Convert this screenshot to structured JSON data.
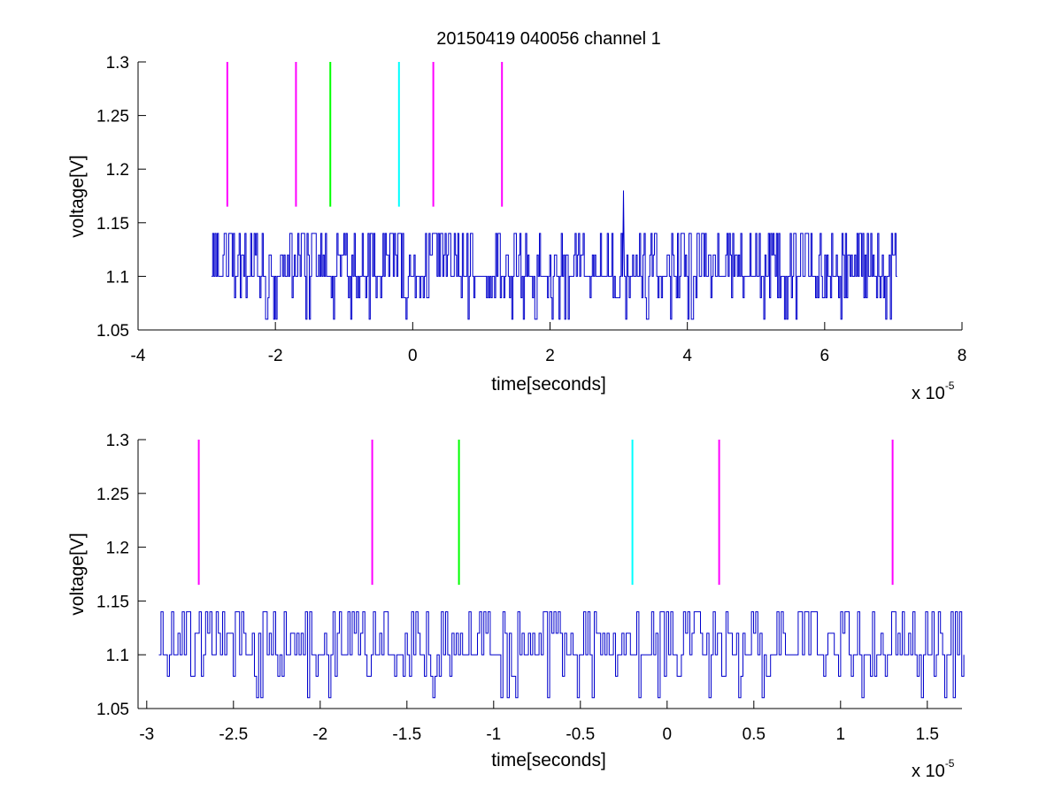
{
  "figure": {
    "background": "#ffffff"
  },
  "chart_data": [
    {
      "type": "line",
      "title": "20150419 040056 channel 1",
      "xlabel": "time[seconds]",
      "ylabel": "voltage[V]",
      "x_multiplier": {
        "base": "x 10",
        "exponent": "-5"
      },
      "xlim": [
        -4,
        8
      ],
      "ylim": [
        1.05,
        1.3
      ],
      "xticks": [
        "-4",
        "-2",
        "0",
        "2",
        "4",
        "6",
        "8"
      ],
      "yticks": [
        "1.05",
        "1.1",
        "1.15",
        "1.2",
        "1.25",
        "1.3"
      ],
      "grid": false,
      "series": [
        {
          "style": "step-noise",
          "color": "#0000cc",
          "x_range": [
            -2.93,
            7.05
          ],
          "levels": [
            1.06,
            1.08,
            1.1,
            1.12,
            1.14
          ],
          "baseline": 1.1,
          "spike": {
            "x": 3.07,
            "y": 1.18
          }
        }
      ],
      "markers": [
        {
          "x": -2.7,
          "color": "#ff00ff",
          "y": [
            1.165,
            1.3
          ]
        },
        {
          "x": -1.7,
          "color": "#ff00ff",
          "y": [
            1.165,
            1.3
          ]
        },
        {
          "x": -1.2,
          "color": "#00ff00",
          "y": [
            1.165,
            1.3
          ]
        },
        {
          "x": -0.2,
          "color": "#00ffff",
          "y": [
            1.165,
            1.3
          ]
        },
        {
          "x": 0.3,
          "color": "#ff00ff",
          "y": [
            1.165,
            1.3
          ]
        },
        {
          "x": 1.3,
          "color": "#ff00ff",
          "y": [
            1.165,
            1.3
          ]
        }
      ]
    },
    {
      "type": "line",
      "title": "",
      "xlabel": "time[seconds]",
      "ylabel": "voltage[V]",
      "x_multiplier": {
        "base": "x 10",
        "exponent": "-5"
      },
      "xlim": [
        -3.05,
        1.7
      ],
      "ylim": [
        1.05,
        1.3
      ],
      "xticks": [
        "-3",
        "-2.5",
        "-2",
        "-1.5",
        "-1",
        "-0.5",
        "0",
        "0.5",
        "1",
        "1.5"
      ],
      "yticks": [
        "1.05",
        "1.1",
        "1.15",
        "1.2",
        "1.25",
        "1.3"
      ],
      "grid": false,
      "series": [
        {
          "style": "step-noise",
          "color": "#0000cc",
          "x_range": [
            -2.93,
            1.7
          ],
          "levels": [
            1.06,
            1.08,
            1.1,
            1.12,
            1.14
          ],
          "baseline": 1.1
        }
      ],
      "markers": [
        {
          "x": -2.7,
          "color": "#ff00ff",
          "y": [
            1.165,
            1.3
          ]
        },
        {
          "x": -1.7,
          "color": "#ff00ff",
          "y": [
            1.165,
            1.3
          ]
        },
        {
          "x": -1.2,
          "color": "#00ff00",
          "y": [
            1.165,
            1.3
          ]
        },
        {
          "x": -0.2,
          "color": "#00ffff",
          "y": [
            1.165,
            1.3
          ]
        },
        {
          "x": 0.3,
          "color": "#ff00ff",
          "y": [
            1.165,
            1.3
          ]
        },
        {
          "x": 1.3,
          "color": "#ff00ff",
          "y": [
            1.165,
            1.3
          ]
        }
      ]
    }
  ]
}
